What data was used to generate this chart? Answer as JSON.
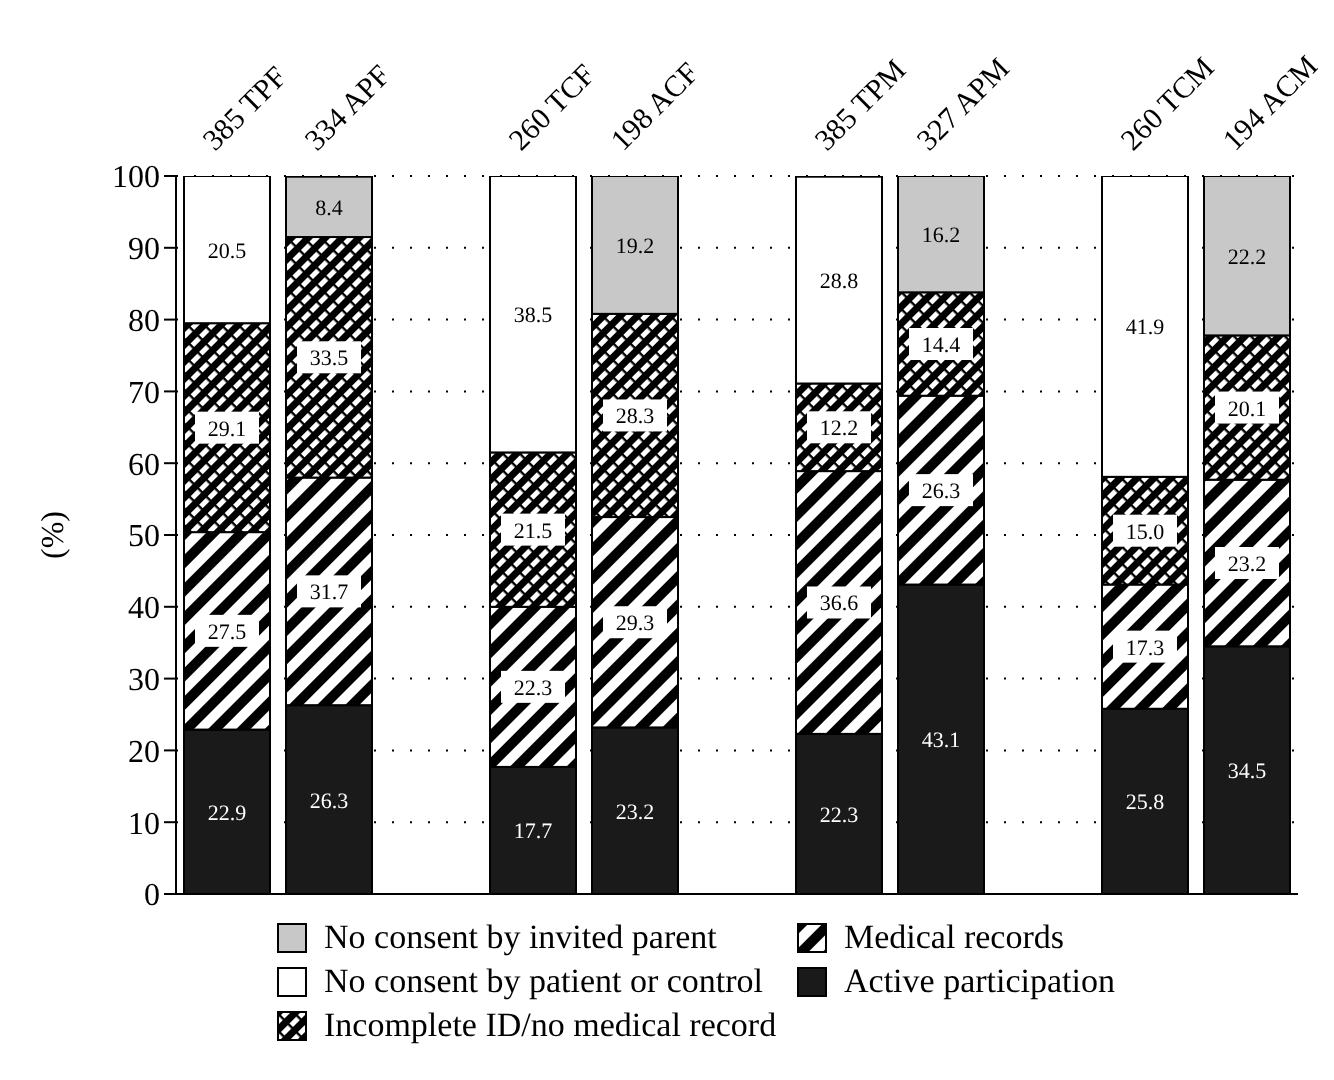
{
  "chart_data": {
    "type": "bar",
    "stacked": true,
    "ylabel": "(%)",
    "categories": [
      "385 TPF",
      "334 APF",
      null,
      "260 TCF",
      "198 ACF",
      null,
      "385 TPM",
      "327 APM",
      null,
      "260 TCM",
      "194 ACM"
    ],
    "ylim": [
      0,
      100
    ],
    "yticks": [
      0,
      10,
      20,
      30,
      40,
      50,
      60,
      70,
      80,
      90,
      100
    ],
    "grid": "y",
    "legend": "bottom",
    "series": [
      {
        "name": "Active participation",
        "color": "#1a1a1a",
        "values": [
          22.9,
          26.3,
          null,
          17.7,
          23.2,
          null,
          22.3,
          43.1,
          null,
          25.8,
          34.5
        ],
        "value_labels": [
          "22.9",
          "26.3",
          null,
          "17.7",
          "23.2",
          null,
          "22.3",
          "43.1",
          null,
          "25.8",
          "34.5"
        ]
      },
      {
        "name": "Medical records",
        "color": "#000000",
        "values": [
          27.5,
          31.7,
          null,
          22.3,
          29.3,
          null,
          36.6,
          26.3,
          null,
          17.3,
          23.2
        ],
        "value_labels": [
          "27.5",
          "31.7",
          null,
          "22.3",
          "29.3",
          null,
          "36.6",
          "26.3",
          null,
          "17.3",
          "23.2"
        ]
      },
      {
        "name": "Incomplete ID/no medical record",
        "color": "#000000",
        "values": [
          29.1,
          33.5,
          null,
          21.5,
          28.3,
          null,
          12.2,
          14.4,
          null,
          15.0,
          20.1
        ],
        "value_labels": [
          "29.1",
          "33.5",
          null,
          "21.5",
          "28.3",
          null,
          "12.2",
          "14.4",
          null,
          "15.0",
          "20.1"
        ]
      },
      {
        "name": "No consent by patient or control",
        "color": "#ffffff",
        "values": [
          20.5,
          null,
          null,
          38.5,
          null,
          null,
          28.8,
          null,
          null,
          41.9,
          null
        ],
        "value_labels": [
          "20.5",
          null,
          null,
          "38.5",
          null,
          null,
          "28.8",
          null,
          null,
          "41.9",
          null
        ]
      },
      {
        "name": "No consent by invited parent",
        "color": "#c8c8c8",
        "values": [
          null,
          8.4,
          null,
          null,
          19.2,
          null,
          null,
          16.2,
          null,
          null,
          22.2
        ],
        "value_labels": [
          null,
          "8.4",
          null,
          null,
          "19.2",
          null,
          null,
          "16.2",
          null,
          null,
          "22.2"
        ]
      }
    ]
  }
}
